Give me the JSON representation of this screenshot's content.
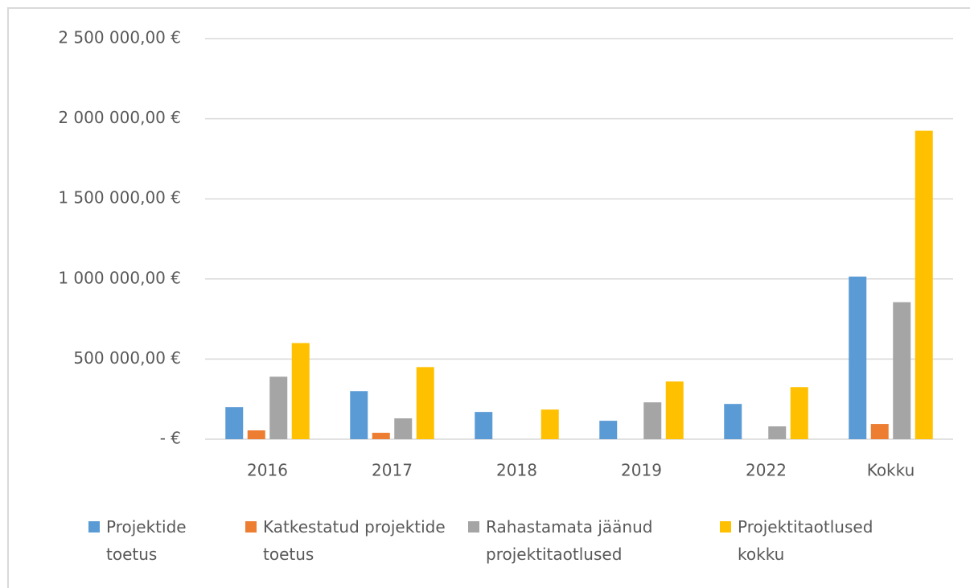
{
  "chart_data": {
    "type": "bar",
    "categories": [
      "2016",
      "2017",
      "2018",
      "2019",
      "2022",
      "Kokku"
    ],
    "series": [
      {
        "name": "Projektide toetus",
        "color": "#5b9bd5",
        "values": [
          200000,
          300000,
          170000,
          115000,
          220000,
          1015000
        ]
      },
      {
        "name": "Katkestatud projektide toetus",
        "color": "#ed7d31",
        "values": [
          55000,
          40000,
          0,
          0,
          0,
          95000
        ]
      },
      {
        "name": "Rahastamata jäänud projektitaotlused",
        "color": "#a5a5a5",
        "values": [
          390000,
          130000,
          0,
          230000,
          80000,
          855000
        ]
      },
      {
        "name": "Projektitaotlused kokku",
        "color": "#ffc000",
        "values": [
          600000,
          450000,
          185000,
          360000,
          325000,
          1925000
        ]
      }
    ],
    "ylim": [
      0,
      2500000
    ],
    "yticks": [
      {
        "value": 0,
        "label": "-  €"
      },
      {
        "value": 500000,
        "label": "500 000,00 €"
      },
      {
        "value": 1000000,
        "label": "1 000 000,00 €"
      },
      {
        "value": 1500000,
        "label": "1 500 000,00 €"
      },
      {
        "value": 2000000,
        "label": "2 000 000,00 €"
      },
      {
        "value": 2500000,
        "label": "2 500 000,00 €"
      }
    ],
    "grid": true,
    "legend": "bottom"
  }
}
